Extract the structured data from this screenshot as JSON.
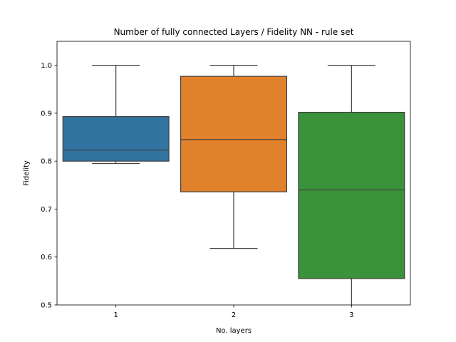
{
  "chart_data": {
    "type": "box",
    "title": "Number of fully connected Layers / Fidelity NN - rule set",
    "xlabel": "No. layers",
    "ylabel": "Fidelity",
    "ylim": [
      0.5,
      1.05
    ],
    "yticks": [
      "0.5",
      "0.6",
      "0.7",
      "0.8",
      "0.9",
      "1.0"
    ],
    "grid": false,
    "legend": "none",
    "categories": [
      "1",
      "2",
      "3"
    ],
    "boxes": [
      {
        "category": "1",
        "whisker_low": 0.795,
        "q1": 0.8,
        "median": 0.823,
        "q3": 0.893,
        "whisker_high": 1.0,
        "color": "#3274a1"
      },
      {
        "category": "2",
        "whisker_low": 0.618,
        "q1": 0.736,
        "median": 0.845,
        "q3": 0.977,
        "whisker_high": 1.0,
        "color": "#e1812c"
      },
      {
        "category": "3",
        "whisker_low": 0.5,
        "q1": 0.555,
        "median": 0.74,
        "q3": 0.902,
        "whisker_high": 1.0,
        "color": "#3a923a"
      }
    ]
  }
}
